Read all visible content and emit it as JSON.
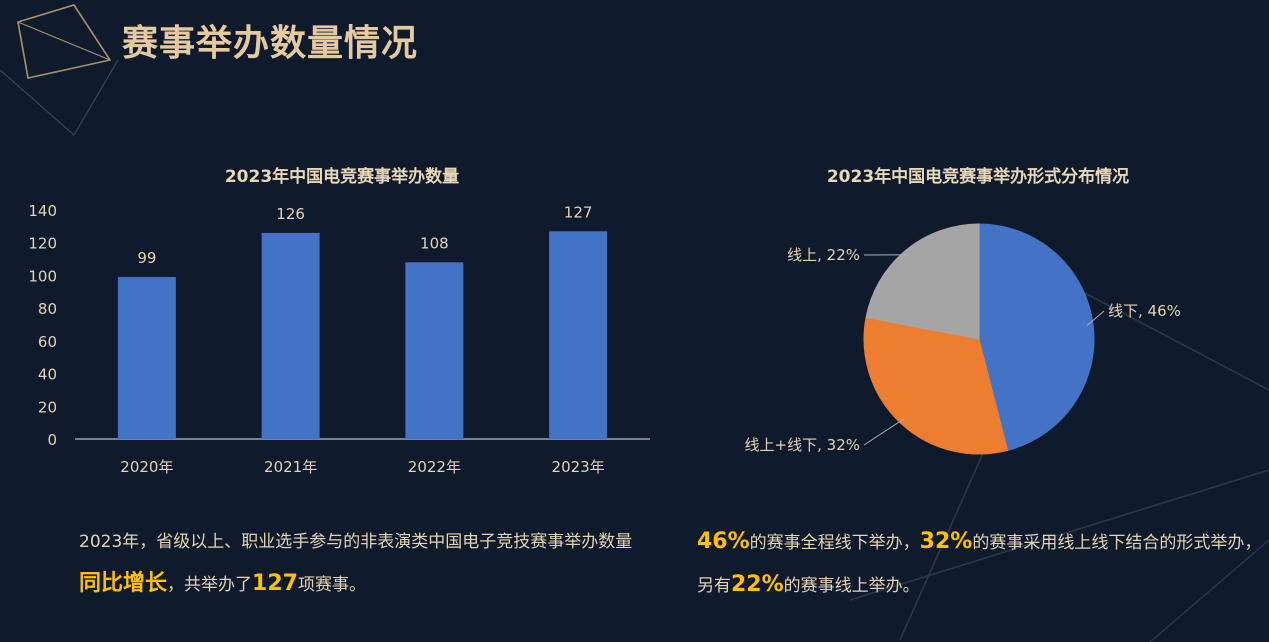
{
  "page": {
    "title": "赛事举办数量情况"
  },
  "chart_data": [
    {
      "type": "bar",
      "title": "2023年中国电竞赛事举办数量",
      "categories": [
        "2020年",
        "2021年",
        "2022年",
        "2023年"
      ],
      "values": [
        99,
        126,
        108,
        127
      ],
      "data_labels": [
        "99",
        "126",
        "108",
        "127"
      ],
      "yticks": [
        "0",
        "20",
        "40",
        "60",
        "80",
        "100",
        "120",
        "140"
      ],
      "ylim": [
        0,
        140
      ],
      "grid": false,
      "color": "#4472c4"
    },
    {
      "type": "pie",
      "title": "2023年中国电竞赛事举办形式分布情况",
      "slices": [
        {
          "label": "线下, 46%",
          "value": 46,
          "color": "#4472c4"
        },
        {
          "label": "线上+线下, 32%",
          "value": 32,
          "color": "#ed7d31"
        },
        {
          "label": "线上, 22%",
          "value": 22,
          "color": "#a5a5a5"
        }
      ]
    }
  ],
  "captions": {
    "bar": {
      "t1": "2023年，省级以上、职业选手参与的非表演类中国电子竞技赛事举办数量",
      "h1": "同比增长",
      "t2": "，共举办了",
      "h2": "127",
      "t3": "项赛事。"
    },
    "pie": {
      "h1": "46%",
      "t1": "的赛事全程线下举办，",
      "h2": "32%",
      "t2": "的赛事采用线上线下结合的形式举办，另有",
      "h3": "22%",
      "t3": "的赛事线上举办。"
    }
  },
  "colors": {
    "background": "#0f1a2c",
    "accent": "#ffc000",
    "text": "#e6d3b3"
  }
}
